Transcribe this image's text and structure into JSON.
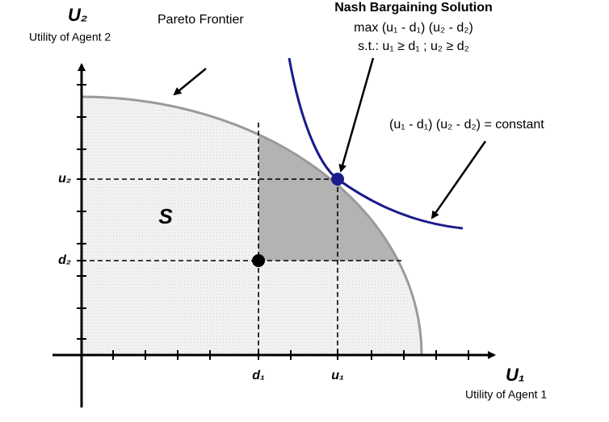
{
  "axes": {
    "y_title": "U₂",
    "y_subtitle": "Utility of Agent 2",
    "x_title": "U₁",
    "x_subtitle": "Utility of Agent 1",
    "y_labels": [
      "u₂",
      "d₂"
    ],
    "x_labels": [
      "d₁",
      "u₁"
    ]
  },
  "annotations": {
    "frontier": "Pareto Frontier",
    "nash_title": "Nash Bargaining Solution",
    "nash_objective": "max (u₁ - d₁) (u₂ - d₂)",
    "nash_constraint": "s.t.: u₁ ≥ d₁ ; u₂ ≥ d₂",
    "curve": "(u₁ - d₁) (u₂ - d₂) = constant",
    "region": "S"
  }
}
